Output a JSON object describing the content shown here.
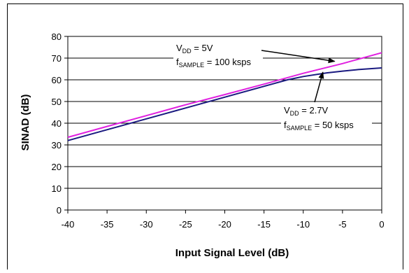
{
  "chart_data": {
    "type": "line",
    "title": "",
    "xlabel": "Input Signal Level (dB)",
    "ylabel": "SINAD (dB)",
    "xlim": [
      -40,
      0
    ],
    "ylim": [
      0,
      80
    ],
    "x_ticks": [
      -40,
      -35,
      -30,
      -25,
      -20,
      -15,
      -10,
      -5,
      0
    ],
    "y_ticks": [
      0,
      10,
      20,
      30,
      40,
      50,
      60,
      70,
      80
    ],
    "grid": true,
    "legend": "none",
    "series": [
      {
        "name": "VDD = 5V, fSAMPLE = 100 ksps",
        "color": "#e020e0",
        "x": [
          -40,
          -35,
          -30,
          -25,
          -20,
          -15,
          -10,
          -5,
          0
        ],
        "y": [
          33.5,
          38.5,
          43.5,
          48.5,
          53.2,
          58,
          63,
          67.5,
          72.5
        ]
      },
      {
        "name": "VDD = 2.7V, fSAMPLE = 50 ksps",
        "color": "#1a1a80",
        "x": [
          -40,
          -35,
          -30,
          -25,
          -20,
          -15,
          -12,
          -10,
          -7,
          -5,
          -3,
          0
        ],
        "y": [
          32,
          37,
          42,
          47,
          52,
          57,
          60,
          61.5,
          63.2,
          64,
          64.7,
          65.5
        ]
      }
    ],
    "annotations": [
      {
        "id": "a1",
        "line1_main": "V",
        "line1_sub": "DD",
        "line1_rest": " = 5V",
        "line2_main": "f",
        "line2_sub": "SAMPLE",
        "line2_rest": " = 100 ksps",
        "arrow_to": [
          -6,
          68.5
        ]
      },
      {
        "id": "a2",
        "line1_main": "V",
        "line1_sub": "DD",
        "line1_rest": " = 2.7V",
        "line2_main": "f",
        "line2_sub": "SAMPLE",
        "line2_rest": " = 50 ksps",
        "arrow_to": [
          -7.5,
          63.5
        ]
      }
    ]
  }
}
